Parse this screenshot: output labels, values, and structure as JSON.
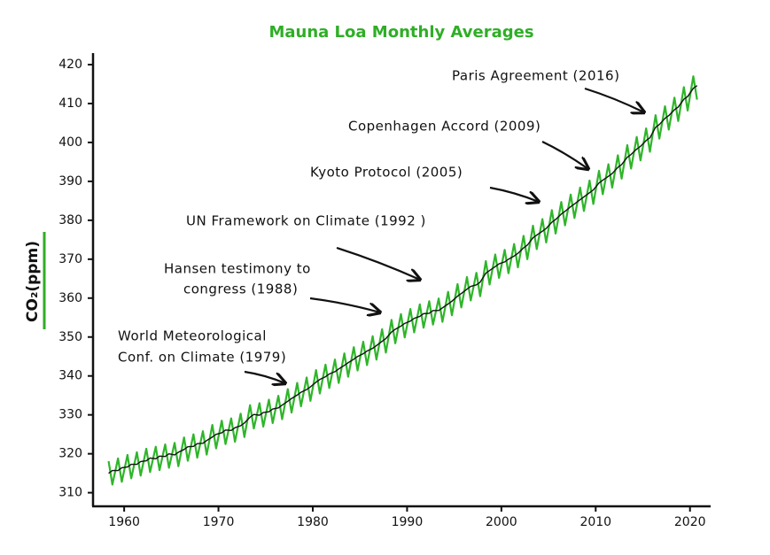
{
  "chart_data": {
    "type": "line",
    "title": "Mauna Loa Monthly Averages",
    "y_label": "CO₂(ppm)",
    "xlim": [
      1956.7,
      2022
    ],
    "ylim": [
      306.5,
      422.5
    ],
    "xticks": [
      1960,
      1970,
      1980,
      1990,
      2000,
      2010,
      2020
    ],
    "yticks": [
      310,
      320,
      330,
      340,
      350,
      360,
      370,
      380,
      390,
      400,
      410,
      420
    ],
    "x": [
      1958.35,
      1958.75,
      1959.35,
      1959.75,
      1960.35,
      1960.75,
      1961.35,
      1961.75,
      1962.35,
      1962.75,
      1963.35,
      1963.75,
      1964.35,
      1964.75,
      1965.35,
      1965.75,
      1966.35,
      1966.75,
      1967.35,
      1967.75,
      1968.35,
      1968.75,
      1969.35,
      1969.75,
      1970.35,
      1970.75,
      1971.35,
      1971.75,
      1972.35,
      1972.75,
      1973.35,
      1973.75,
      1974.35,
      1974.75,
      1975.35,
      1975.75,
      1976.35,
      1976.75,
      1977.35,
      1977.75,
      1978.35,
      1978.75,
      1979.35,
      1979.75,
      1980.35,
      1980.75,
      1981.35,
      1981.75,
      1982.35,
      1982.75,
      1983.35,
      1983.75,
      1984.35,
      1984.75,
      1985.35,
      1985.75,
      1986.35,
      1986.75,
      1987.35,
      1987.75,
      1988.35,
      1988.75,
      1989.35,
      1989.75,
      1990.35,
      1990.75,
      1991.35,
      1991.75,
      1992.35,
      1992.75,
      1993.35,
      1993.75,
      1994.35,
      1994.75,
      1995.35,
      1995.75,
      1996.35,
      1996.75,
      1997.35,
      1997.75,
      1998.35,
      1998.75,
      1999.35,
      1999.75,
      2000.35,
      2000.75,
      2001.35,
      2001.75,
      2002.35,
      2002.75,
      2003.35,
      2003.75,
      2004.35,
      2004.75,
      2005.35,
      2005.75,
      2006.35,
      2006.75,
      2007.35,
      2007.75,
      2008.35,
      2008.75,
      2009.35,
      2009.75,
      2010.35,
      2010.75,
      2011.35,
      2011.75,
      2012.35,
      2012.75,
      2013.35,
      2013.75,
      2014.35,
      2014.75,
      2015.35,
      2015.75,
      2016.35,
      2016.75,
      2017.35,
      2017.75,
      2018.35,
      2018.75,
      2019.35,
      2019.75,
      2020.35,
      2020.75
    ],
    "series": [
      {
        "color": "#2fb52a",
        "values": [
          318.1,
          312.1,
          318.8,
          312.8,
          319.7,
          313.7,
          320.4,
          314.4,
          321.3,
          315.3,
          321.8,
          315.8,
          322.4,
          316.4,
          322.8,
          316.8,
          324.2,
          318.2,
          325.0,
          319.0,
          325.8,
          319.8,
          327.4,
          321.4,
          328.5,
          322.5,
          329.1,
          323.1,
          330.3,
          324.3,
          332.5,
          326.5,
          333.0,
          327.0,
          333.9,
          327.9,
          334.9,
          328.9,
          336.6,
          330.6,
          338.2,
          332.2,
          339.6,
          333.6,
          341.5,
          335.5,
          342.9,
          336.9,
          344.2,
          338.2,
          345.8,
          339.8,
          347.4,
          341.4,
          348.8,
          342.8,
          350.2,
          344.2,
          352.0,
          346.0,
          354.4,
          348.4,
          355.9,
          349.9,
          357.2,
          351.2,
          358.4,
          352.4,
          359.2,
          353.2,
          359.9,
          353.9,
          361.6,
          355.6,
          363.6,
          357.6,
          365.4,
          359.4,
          366.5,
          360.5,
          369.5,
          363.5,
          371.2,
          365.2,
          372.4,
          366.4,
          373.9,
          367.9,
          376.0,
          370.0,
          378.6,
          372.6,
          380.3,
          374.3,
          382.6,
          376.6,
          384.7,
          378.7,
          386.6,
          380.6,
          388.4,
          382.4,
          390.2,
          384.2,
          392.7,
          386.7,
          394.4,
          388.4,
          396.7,
          390.7,
          399.3,
          393.3,
          401.4,
          395.4,
          403.6,
          397.6,
          407.0,
          401.0,
          409.3,
          403.3,
          411.5,
          405.5,
          414.2,
          408.2,
          417.0,
          411.0
        ]
      },
      {
        "color": "#111111",
        "values": [
          315.0,
          315.7,
          315.7,
          316.4,
          316.6,
          317.3,
          317.3,
          318.0,
          318.2,
          318.9,
          318.7,
          319.4,
          319.3,
          320.0,
          319.7,
          320.4,
          321.1,
          321.8,
          321.9,
          322.6,
          322.7,
          323.4,
          324.3,
          325.0,
          325.4,
          326.1,
          326.0,
          326.7,
          327.2,
          327.9,
          329.4,
          330.1,
          329.9,
          330.6,
          330.8,
          331.5,
          331.8,
          332.5,
          333.5,
          334.2,
          335.1,
          335.8,
          336.5,
          337.2,
          338.4,
          339.1,
          339.8,
          340.5,
          341.1,
          341.8,
          342.7,
          343.4,
          344.3,
          345.0,
          345.7,
          346.4,
          347.1,
          347.8,
          348.9,
          349.6,
          351.3,
          352.0,
          352.8,
          353.5,
          354.1,
          354.8,
          355.3,
          356.0,
          356.1,
          356.8,
          356.8,
          357.5,
          358.5,
          359.2,
          360.5,
          361.2,
          362.3,
          363.0,
          363.4,
          364.1,
          366.4,
          367.1,
          368.1,
          368.8,
          369.3,
          370.0,
          370.8,
          371.5,
          372.9,
          373.6,
          375.5,
          376.2,
          377.2,
          377.9,
          379.5,
          380.2,
          381.6,
          382.3,
          383.5,
          384.2,
          385.3,
          386.0,
          387.1,
          387.8,
          389.6,
          390.3,
          391.3,
          392.0,
          393.6,
          394.3,
          396.2,
          396.9,
          398.3,
          399.0,
          400.5,
          401.2,
          403.9,
          404.6,
          406.2,
          406.9,
          408.4,
          409.1,
          411.1,
          411.8,
          413.9,
          414.6
        ]
      }
    ],
    "annotations": [
      [
        "Paris Agreement  (2016)"
      ],
      [
        "Copenhagen Accord (2009)"
      ],
      [
        "Kyoto Protocol (2005)"
      ],
      [
        "UN Framework on Climate (1992 )"
      ],
      [
        "Hansen testimony to",
        "congress (1988)"
      ],
      [
        "World Meteorological",
        "Conf. on Climate (1979)"
      ]
    ]
  }
}
